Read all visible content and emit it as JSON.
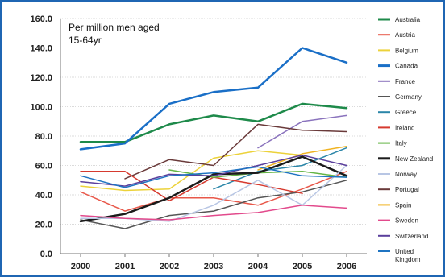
{
  "chart_data": {
    "type": "line",
    "title": "Per million men aged",
    "subtitle": "15-64yr",
    "xlabel": "",
    "ylabel": "",
    "x": [
      "2000",
      "2001",
      "2002",
      "2003",
      "2004",
      "2005",
      "2006"
    ],
    "ylim": [
      0,
      160
    ],
    "y_ticks": [
      "0.0",
      "20.0",
      "40.0",
      "60.0",
      "80.0",
      "100.0",
      "120.0",
      "140.0",
      "160.0"
    ],
    "grid": true,
    "legend": "right",
    "series": [
      {
        "name": "Australia",
        "color": "#1e8a4a",
        "width": 2.5,
        "values": [
          76,
          76,
          88,
          94,
          90,
          102,
          99
        ]
      },
      {
        "name": "Austria",
        "color": "#e8584a",
        "width": 1.5,
        "values": [
          42,
          29,
          38,
          38,
          33,
          44,
          56
        ]
      },
      {
        "name": "Belgium",
        "color": "#ecd23a",
        "width": 1.5,
        "values": [
          46,
          43,
          44,
          65,
          70,
          67,
          null
        ]
      },
      {
        "name": "Canada",
        "color": "#1a6fc7",
        "width": 2.5,
        "values": [
          71,
          75,
          102,
          110,
          113,
          140,
          130
        ]
      },
      {
        "name": "France",
        "color": "#8a73bd",
        "width": 1.5,
        "values": [
          null,
          null,
          null,
          null,
          72,
          90,
          94
        ]
      },
      {
        "name": "Germany",
        "color": "#555555",
        "width": 1.5,
        "values": [
          23,
          17,
          26,
          29,
          38,
          42,
          50
        ]
      },
      {
        "name": "Greece",
        "color": "#2b86a8",
        "width": 1.5,
        "values": [
          null,
          null,
          null,
          44,
          56,
          60,
          72
        ]
      },
      {
        "name": "Ireland",
        "color": "#d63a2f",
        "width": 1.5,
        "values": [
          56,
          56,
          36,
          52,
          47,
          41,
          null
        ]
      },
      {
        "name": "Italy",
        "color": "#64b545",
        "width": 1.5,
        "values": [
          null,
          null,
          57,
          52,
          55,
          56,
          52
        ]
      },
      {
        "name": "New Zealand",
        "color": "#1b1b1b",
        "width": 2.5,
        "values": [
          22,
          27,
          38,
          54,
          55,
          66,
          53
        ]
      },
      {
        "name": "Norway",
        "color": "#b8c6e4",
        "width": 1.5,
        "values": [
          24,
          24,
          22,
          33,
          50,
          33,
          60
        ]
      },
      {
        "name": "Portugal",
        "color": "#6a3a3a",
        "width": 1.5,
        "values": [
          null,
          51,
          64,
          60,
          88,
          84,
          83
        ]
      },
      {
        "name": "Spain",
        "color": "#f0b322",
        "width": 1.5,
        "values": [
          null,
          null,
          null,
          null,
          57,
          68,
          73
        ]
      },
      {
        "name": "Sweden",
        "color": "#e24a8c",
        "width": 1.5,
        "values": [
          26,
          24,
          23,
          26,
          28,
          33,
          31
        ]
      },
      {
        "name": "Switzerland",
        "color": "#5a3f9c",
        "width": 1.5,
        "values": [
          49,
          46,
          54,
          53,
          60,
          67,
          60
        ]
      },
      {
        "name": "United Kingdom",
        "color": "#1f74c2",
        "width": 1.5,
        "values": [
          53,
          45,
          53,
          55,
          59,
          53,
          52
        ]
      }
    ]
  }
}
